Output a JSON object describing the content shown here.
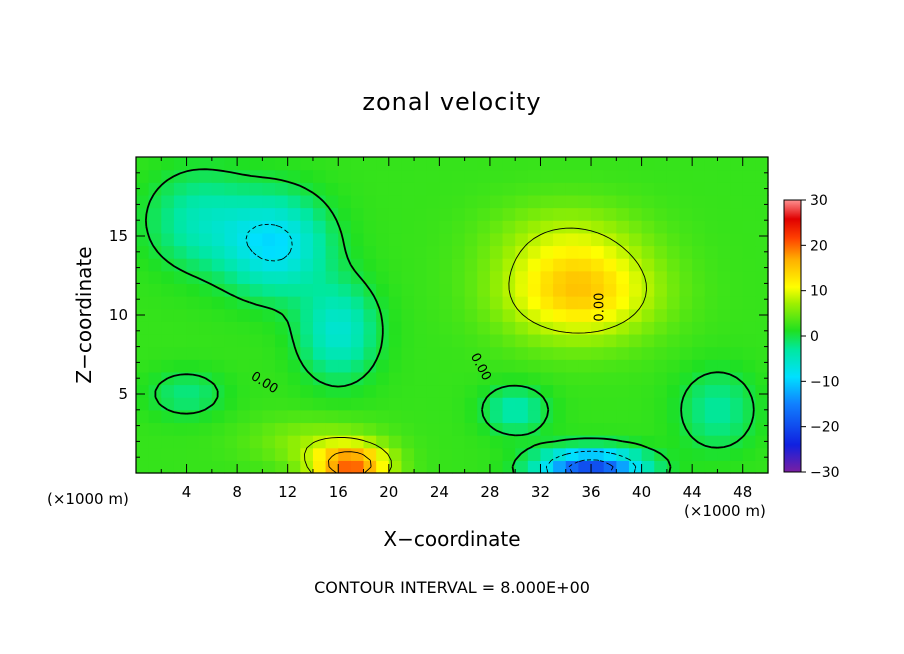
{
  "chart_data": {
    "type": "heatmap",
    "title": "zonal velocity",
    "xlabel": "X−coordinate",
    "ylabel": "Z−coordinate",
    "x_unit_label": "(×1000 m)",
    "x_unit_label_right": "(×1000 m)",
    "xlim": [
      0,
      50
    ],
    "ylim": [
      0,
      20
    ],
    "x_ticks": [
      4,
      8,
      12,
      16,
      20,
      24,
      28,
      32,
      36,
      40,
      44,
      48
    ],
    "y_ticks": [
      5,
      10,
      15
    ],
    "colorbar": {
      "range": [
        -30,
        30
      ],
      "ticks": [
        30,
        20,
        10,
        0,
        -10,
        -20,
        -30
      ],
      "tick_labels": [
        "30",
        "20",
        "10",
        "0",
        "−10",
        "−20",
        "−30"
      ]
    },
    "contour_interval_text": "CONTOUR INTERVAL = 8.000E+00",
    "contour_interval": 8.0,
    "contour_labels": [
      "0.00",
      "0.00",
      "0.00"
    ],
    "field": {
      "background": 2,
      "features": [
        {
          "name": "jet-core",
          "x": 35,
          "z": 11.5,
          "sx": 6,
          "sz": 3,
          "amp": 13
        },
        {
          "name": "upper-positive",
          "x": 34,
          "z": 15,
          "sx": 6,
          "sz": 2.5,
          "amp": 4
        },
        {
          "name": "surface-max",
          "x": 17,
          "z": 0.5,
          "sx": 3,
          "sz": 1.3,
          "amp": 18
        },
        {
          "name": "surface-positive",
          "x": 14,
          "z": 2,
          "sx": 5,
          "sz": 1.5,
          "amp": 4
        },
        {
          "name": "surface-min",
          "x": 36,
          "z": 0.3,
          "sx": 4,
          "sz": 1.2,
          "amp": -22
        },
        {
          "name": "upper-left-min",
          "x": 11,
          "z": 14.5,
          "sx": 4,
          "sz": 3,
          "amp": -11
        },
        {
          "name": "mid-left-min",
          "x": 16,
          "z": 9,
          "sx": 3,
          "sz": 3,
          "amp": -8
        },
        {
          "name": "left-min",
          "x": 5,
          "z": 16,
          "sx": 4,
          "sz": 3,
          "amp": -6
        },
        {
          "name": "low-min",
          "x": 30,
          "z": 4,
          "sx": 2.5,
          "sz": 1.5,
          "amp": -6
        },
        {
          "name": "right-min",
          "x": 46,
          "z": 4,
          "sx": 3,
          "sz": 2.5,
          "amp": -5
        },
        {
          "name": "lower-left-negative",
          "x": 4,
          "z": 5,
          "sx": 3,
          "sz": 1.5,
          "amp": -4
        }
      ]
    }
  }
}
